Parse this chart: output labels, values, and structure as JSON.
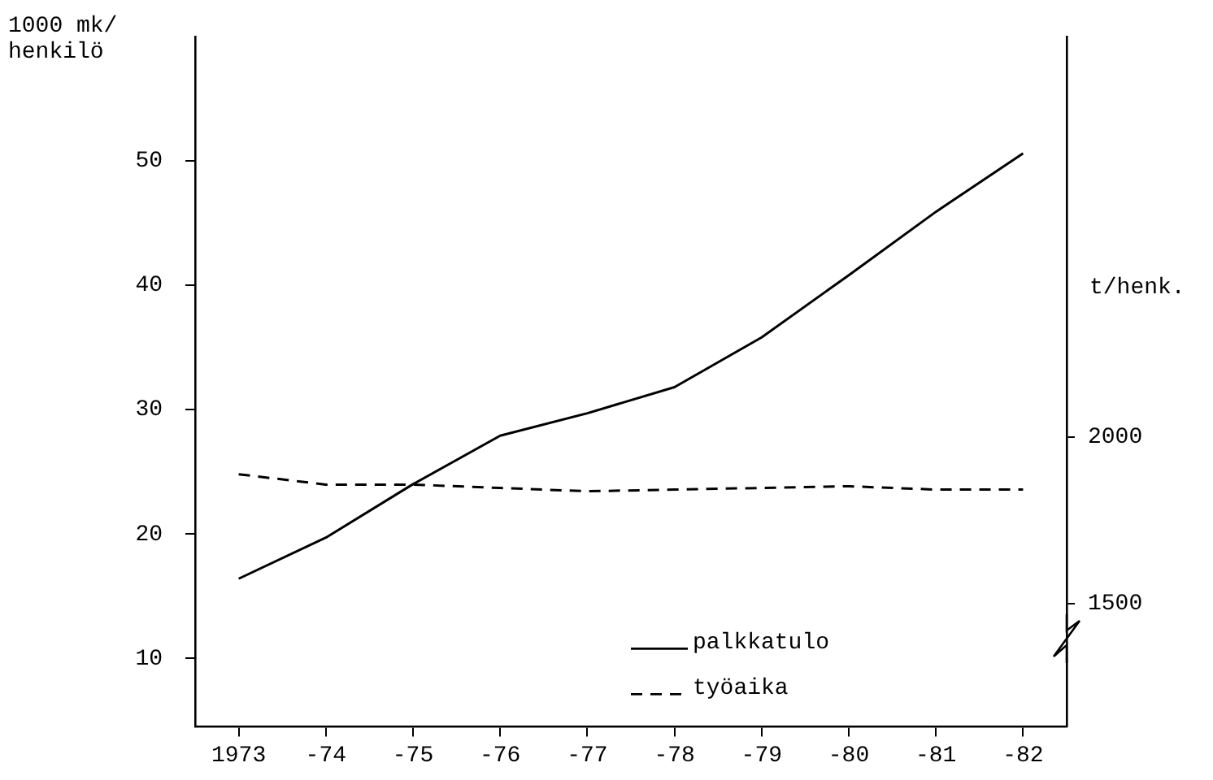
{
  "chart_data": {
    "type": "line",
    "categories": [
      "1973",
      "-74",
      "-75",
      "-76",
      "-77",
      "-78",
      "-79",
      "-80",
      "-81",
      "-82"
    ],
    "ylabel": "1000 mk/\nhenkilö",
    "y2label": "t/henk.",
    "ylim": [
      4.5,
      60
    ],
    "yticks": [
      10,
      20,
      30,
      40,
      50
    ],
    "y2lim": [
      1131,
      3201
    ],
    "y2ticks": [
      1500,
      2000
    ],
    "series": [
      {
        "name": "palkkatulo",
        "color": "#000000",
        "line_style": "solid",
        "values": [
          16.4,
          19.7,
          24.0,
          27.9,
          29.7,
          31.8,
          35.8,
          40.8,
          45.9,
          50.6
        ]
      },
      {
        "name": "työaika",
        "color": "#000000",
        "line_style": "dashed",
        "axis": "y2",
        "values": [
          1888,
          1857,
          1857,
          1847,
          1837,
          1842,
          1847,
          1852,
          1842,
          1842
        ]
      }
    ],
    "legend": "bottom right",
    "marker": "none",
    "grid": false
  }
}
